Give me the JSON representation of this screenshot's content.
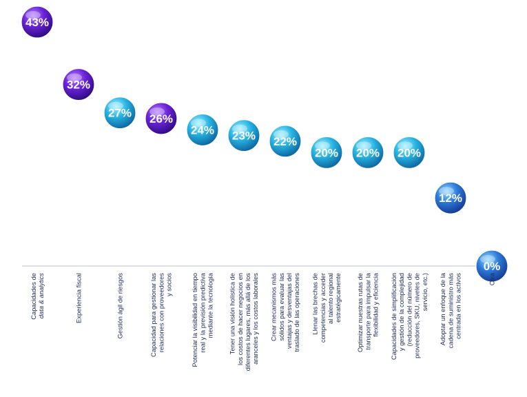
{
  "chart_data": {
    "type": "bar",
    "title": "",
    "xlabel": "",
    "ylabel": "",
    "ylim": [
      0,
      43
    ],
    "grid": false,
    "legend": "none",
    "categories": [
      [
        "Capacidades de",
        "data & analytics"
      ],
      [
        "Experiencia fiscal"
      ],
      [
        "Gestión ágil de riesgos"
      ],
      [
        "Capacidad para gestionar las",
        "relaciones con proveedores",
        "y socios"
      ],
      [
        "Potenciar la visibilidad en tiempo",
        "real y la previsión predictiva",
        "mediante la tecnología"
      ],
      [
        "Tener una visión holística de",
        "los costos de hacer negocios en",
        "diferentes lugares, más allá de los",
        "aranceles y los costos laborales"
      ],
      [
        "Crear mecanismos más",
        "sólidos para evaluar las",
        "ventajas y desventajas del",
        "traslado de las operaciones"
      ],
      [
        "Llenar las brechas de",
        "competencias y acceder",
        "al talento regional",
        "estratégicamente"
      ],
      [
        "Optimizar nuestras rutas de",
        "transporte para impulsar la",
        "flexibilidad y eficiencia"
      ],
      [
        "Capacidades de simplificación",
        "y gestión de la complejidad",
        "(reducción del número de",
        "proveedores, SKU, niveles de",
        "servicio, etc.)"
      ],
      [
        "Adoptar un enfoque de la",
        "cadena de suministro más",
        "centrada en los activos"
      ],
      [
        "Otra"
      ]
    ],
    "values": [
      43,
      32,
      27,
      26,
      24,
      23,
      22,
      20,
      20,
      20,
      12,
      0
    ],
    "value_labels": [
      "43%",
      "32%",
      "27%",
      "26%",
      "24%",
      "23%",
      "22%",
      "20%",
      "20%",
      "20%",
      "12%",
      "0%"
    ],
    "highlight": [
      true,
      true,
      false,
      true,
      false,
      false,
      false,
      false,
      false,
      false,
      false,
      false
    ],
    "italic_last_line": [
      true,
      false,
      false,
      false,
      false,
      false,
      false,
      false,
      false,
      false,
      false,
      false
    ],
    "colors": {
      "highlight_stem": "#7a2fe0",
      "normal_stem": "#3fc6ee",
      "highlight_bubble": "#5a1cc4",
      "normal_bubble": "#1da8d8",
      "low_bubble": "#2e6fd6",
      "baseline": "#c9ccd6",
      "label": "#1d2a5c"
    }
  }
}
